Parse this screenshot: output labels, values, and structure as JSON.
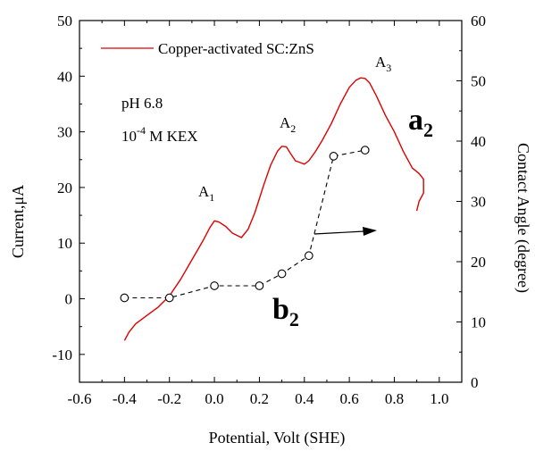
{
  "chart_data": {
    "type": "line",
    "xlabel": "Potential, Volt (SHE)",
    "ylabel_left": "Current,μA",
    "ylabel_right": "Contact Angle (degree)",
    "xlim": [
      -0.6,
      1.1
    ],
    "ylim_left": [
      -15,
      50
    ],
    "ylim_right": [
      0,
      60
    ],
    "x_ticks": [
      "-0.6",
      "-0.4",
      "-0.2",
      "0.0",
      "0.2",
      "0.4",
      "0.6",
      "0.8",
      "1.0"
    ],
    "y_left_ticks": [
      "-10",
      "0",
      "10",
      "20",
      "30",
      "40",
      "50"
    ],
    "y_right_ticks": [
      "0",
      "10",
      "20",
      "30",
      "40",
      "50",
      "60"
    ],
    "legend": {
      "position": "top-left"
    },
    "series": [
      {
        "name": "Copper-activated SC:ZnS",
        "axis": "left",
        "color": "#dd0000",
        "style": "solid",
        "x": [
          -0.4,
          -0.38,
          -0.35,
          -0.3,
          -0.25,
          -0.2,
          -0.15,
          -0.1,
          -0.05,
          -0.02,
          0.0,
          0.02,
          0.05,
          0.08,
          0.12,
          0.15,
          0.18,
          0.22,
          0.25,
          0.28,
          0.3,
          0.32,
          0.34,
          0.36,
          0.38,
          0.4,
          0.42,
          0.45,
          0.48,
          0.52,
          0.56,
          0.6,
          0.63,
          0.65,
          0.67,
          0.69,
          0.72,
          0.76,
          0.8,
          0.84,
          0.88,
          0.91,
          0.93,
          0.93,
          0.91,
          0.9
        ],
        "y": [
          -7.5,
          -6.0,
          -4.5,
          -3.0,
          -1.5,
          0.5,
          3.5,
          7.0,
          10.5,
          12.8,
          14.0,
          13.8,
          13.0,
          11.8,
          11.0,
          12.5,
          15.5,
          20.5,
          24.0,
          26.5,
          27.4,
          27.3,
          26.0,
          24.8,
          24.5,
          24.2,
          24.8,
          26.5,
          28.5,
          31.5,
          35.0,
          38.0,
          39.3,
          39.7,
          39.6,
          38.8,
          36.5,
          33.0,
          30.0,
          26.5,
          23.5,
          22.5,
          21.5,
          19.0,
          17.5,
          15.8
        ]
      },
      {
        "name": "",
        "axis": "right",
        "color": "#000000",
        "style": "dashed-circle",
        "x": [
          -0.4,
          -0.2,
          0.0,
          0.2,
          0.3,
          0.42,
          0.53,
          0.67
        ],
        "y": [
          14.0,
          14.0,
          16.0,
          16.0,
          18.0,
          21.0,
          37.5,
          38.5
        ]
      }
    ],
    "annotations": {
      "ph": "pH 6.8",
      "kex_base": "10",
      "kex_exp": "-4",
      "kex_rest": " M KEX",
      "peak1_main": "A",
      "peak1_sub": "1",
      "peak2_main": "A",
      "peak2_sub": "2",
      "peak3_main": "A",
      "peak3_sub": "3",
      "curve_a_main": "a",
      "curve_a_sub": "2",
      "curve_b_main": "b",
      "curve_b_sub": "2"
    }
  }
}
